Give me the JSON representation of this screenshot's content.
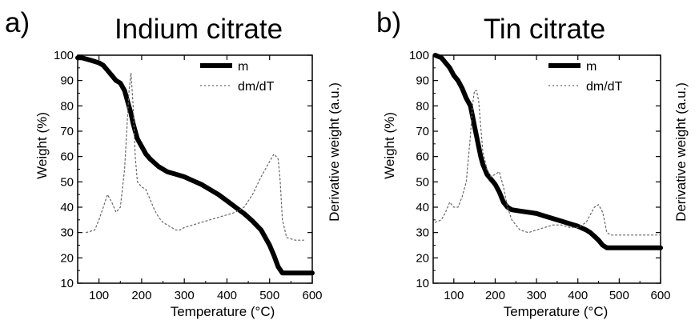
{
  "chart_data": [
    {
      "type": "line",
      "panel_label": "a)",
      "title": "Indium citrate",
      "xlabel": "Temperature (°C)",
      "ylabel": "Weight (%)",
      "y2label": "Derivative weight (a.u.)",
      "xlim": [
        50,
        600
      ],
      "ylim": [
        10,
        100
      ],
      "xticks": [
        100,
        200,
        300,
        400,
        500,
        600
      ],
      "yticks": [
        10,
        20,
        30,
        40,
        50,
        60,
        70,
        80,
        90,
        100
      ],
      "legend_position": "top-right",
      "series": [
        {
          "name": "m",
          "style": "solid-thick",
          "x": [
            50,
            60,
            80,
            100,
            110,
            120,
            130,
            140,
            150,
            160,
            170,
            175,
            180,
            185,
            190,
            200,
            210,
            220,
            240,
            260,
            280,
            300,
            320,
            340,
            360,
            380,
            400,
            420,
            440,
            460,
            480,
            490,
            500,
            510,
            520,
            530,
            540,
            550,
            560,
            580,
            600
          ],
          "y": [
            99,
            99,
            98,
            97,
            96,
            94,
            92,
            90,
            89,
            86,
            80,
            77,
            73,
            70,
            67,
            64,
            61,
            59,
            56,
            54,
            53,
            52,
            50.5,
            49,
            47,
            45,
            42.5,
            40,
            37.5,
            34.5,
            31,
            28,
            25,
            21,
            16.5,
            14,
            14,
            14,
            14,
            14,
            14
          ]
        },
        {
          "name": "dm/dT",
          "style": "dotted",
          "x": [
            70,
            90,
            100,
            110,
            120,
            130,
            140,
            150,
            160,
            165,
            170,
            175,
            180,
            185,
            190,
            200,
            210,
            220,
            230,
            240,
            250,
            260,
            270,
            280,
            290,
            300,
            320,
            340,
            360,
            380,
            400,
            420,
            440,
            460,
            480,
            490,
            500,
            510,
            520,
            525,
            530,
            540,
            560,
            580
          ],
          "y": [
            30,
            31,
            35,
            40,
            45,
            42,
            38,
            40,
            55,
            70,
            85,
            93,
            80,
            60,
            50,
            48,
            47,
            43,
            39,
            36,
            34,
            33,
            32,
            31,
            31,
            32,
            33,
            34,
            35,
            36,
            37,
            38,
            40,
            45,
            52,
            55,
            58,
            61,
            59,
            50,
            35,
            28,
            27,
            27
          ]
        }
      ]
    },
    {
      "type": "line",
      "panel_label": "b)",
      "title": "Tin citrate",
      "xlabel": "Temperature (°C)",
      "ylabel": "Weight (%)",
      "y2label": "Derivative weight (a.u.)",
      "xlim": [
        50,
        600
      ],
      "ylim": [
        10,
        100
      ],
      "xticks": [
        100,
        200,
        300,
        400,
        500,
        600
      ],
      "yticks": [
        10,
        20,
        30,
        40,
        50,
        60,
        70,
        80,
        90,
        100
      ],
      "legend_position": "top-right",
      "series": [
        {
          "name": "m",
          "style": "solid-thick",
          "x": [
            55,
            70,
            80,
            90,
            100,
            110,
            120,
            130,
            140,
            145,
            150,
            155,
            160,
            165,
            170,
            180,
            190,
            200,
            210,
            220,
            230,
            240,
            260,
            280,
            300,
            320,
            340,
            360,
            380,
            400,
            420,
            430,
            440,
            450,
            460,
            470,
            480,
            500,
            550,
            600
          ],
          "y": [
            100,
            99,
            97,
            95,
            92,
            90,
            87,
            83,
            80,
            76,
            72,
            68,
            64,
            60,
            57,
            53,
            51,
            49,
            46,
            42,
            40,
            39,
            38.5,
            38,
            37.5,
            36.5,
            35.5,
            34.5,
            33.5,
            32.5,
            31,
            30,
            28.5,
            27,
            25,
            24,
            24,
            24,
            24,
            24
          ]
        },
        {
          "name": "dm/dT",
          "style": "dotted",
          "x": [
            55,
            70,
            80,
            90,
            100,
            110,
            120,
            130,
            140,
            145,
            150,
            155,
            160,
            165,
            170,
            180,
            190,
            200,
            210,
            220,
            230,
            240,
            260,
            280,
            300,
            320,
            340,
            360,
            380,
            400,
            420,
            430,
            440,
            450,
            460,
            470,
            480,
            500,
            550,
            600
          ],
          "y": [
            34,
            35,
            38,
            42,
            40,
            40,
            44,
            50,
            68,
            80,
            86,
            86,
            82,
            72,
            62,
            55,
            52,
            53,
            54,
            48,
            40,
            35,
            31,
            30,
            31,
            32,
            33,
            33,
            32,
            32,
            34,
            37,
            40,
            41,
            38,
            30,
            29,
            29,
            29,
            29
          ]
        }
      ]
    }
  ]
}
